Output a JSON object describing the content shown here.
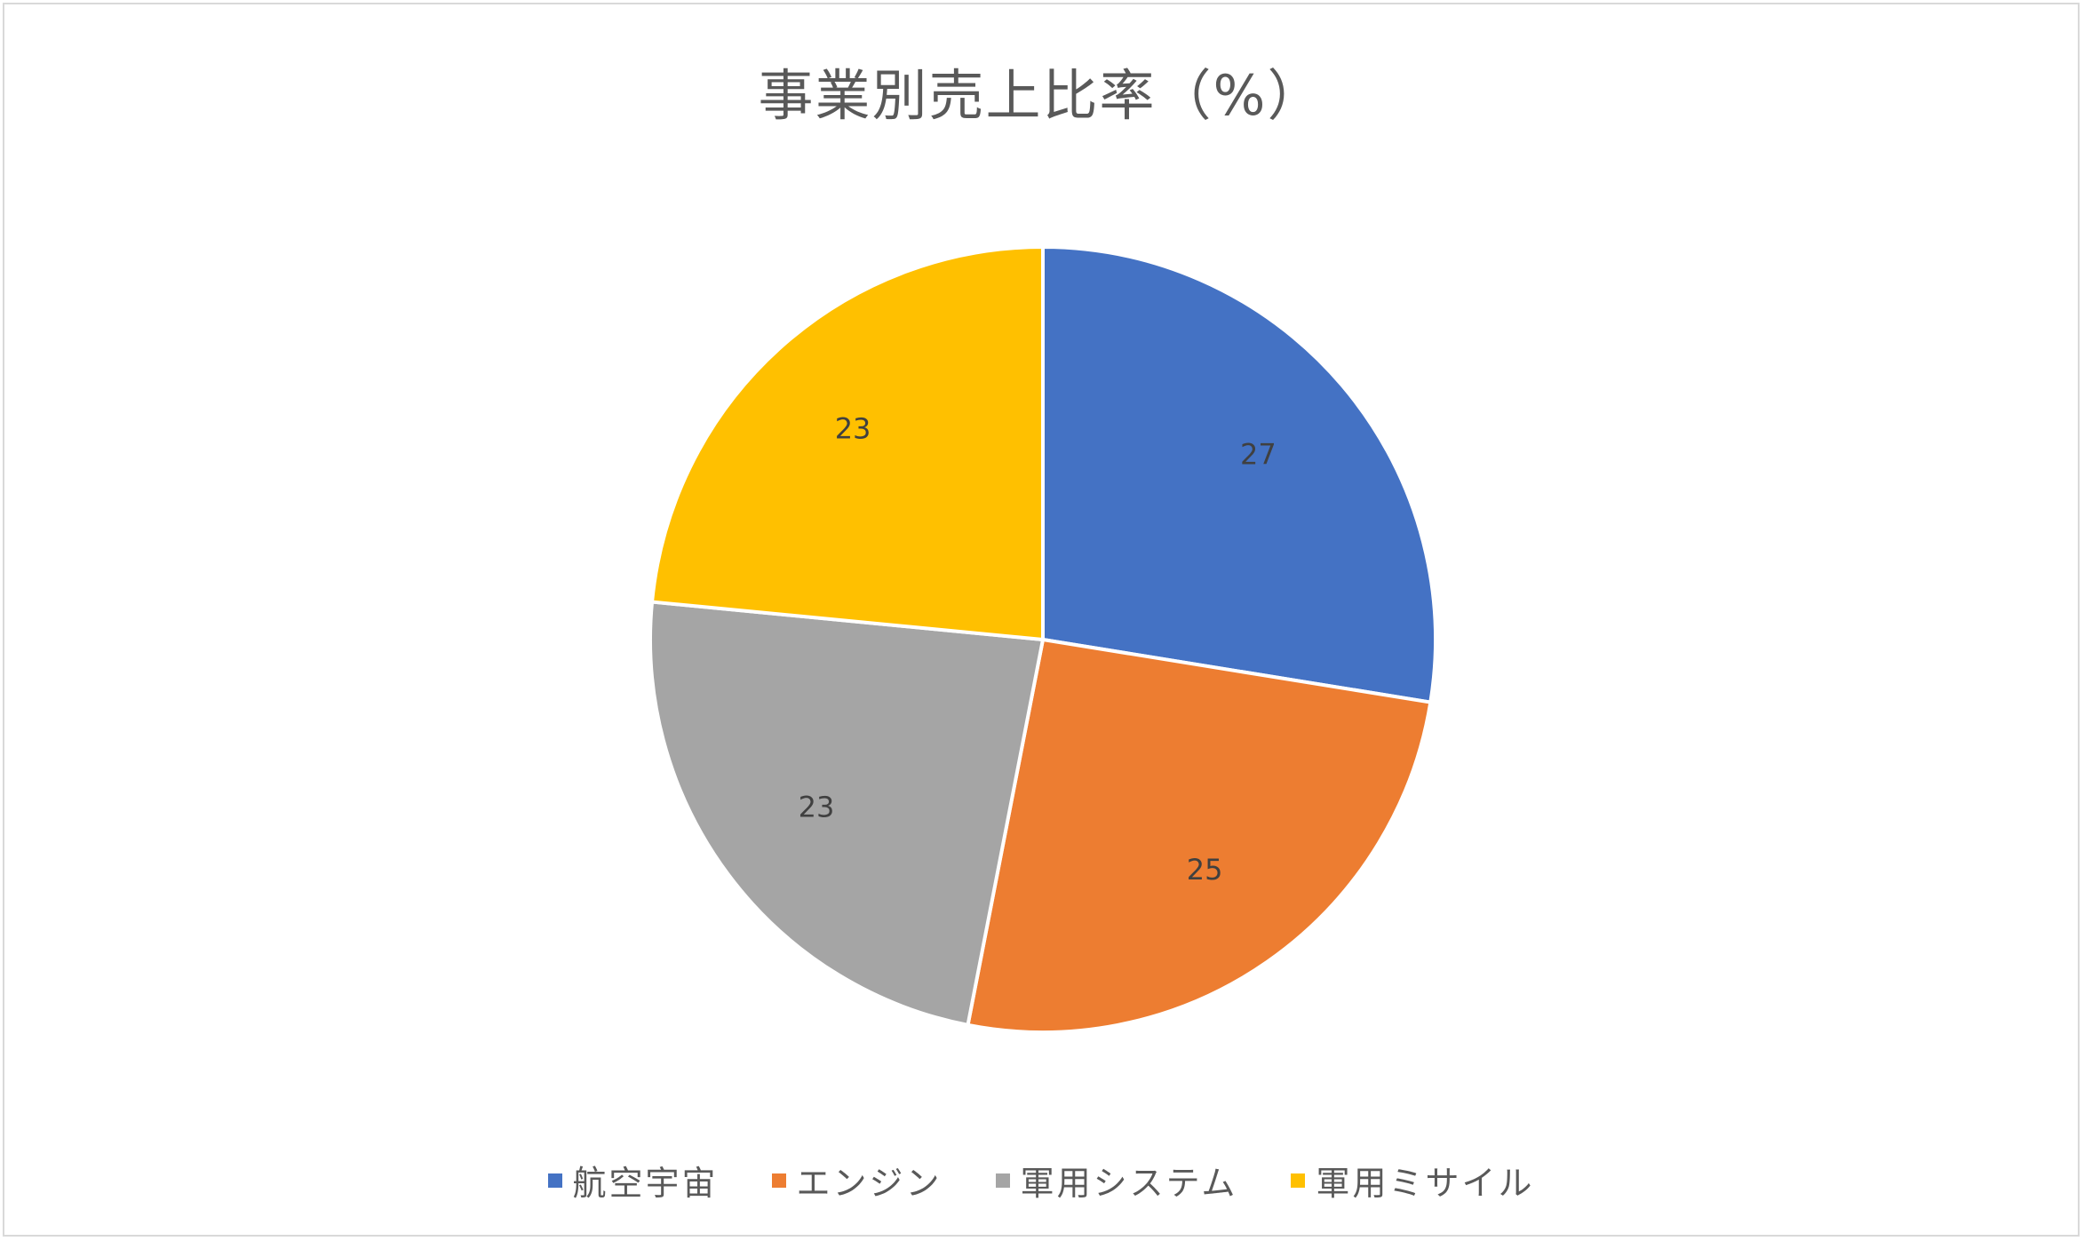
{
  "chart_data": {
    "type": "pie",
    "title": "事業別売上比率（%）",
    "categories": [
      "航空宇宙",
      "エンジン",
      "軍用システム",
      "軍用ミサイル"
    ],
    "values": [
      27,
      25,
      23,
      23
    ],
    "colors": [
      "#4472c4",
      "#ed7d31",
      "#a5a5a5",
      "#ffc000"
    ],
    "start_angle_deg": 0,
    "direction": "clockwise",
    "data_labels": [
      "27",
      "25",
      "23",
      "23"
    ],
    "legend_position": "bottom"
  }
}
